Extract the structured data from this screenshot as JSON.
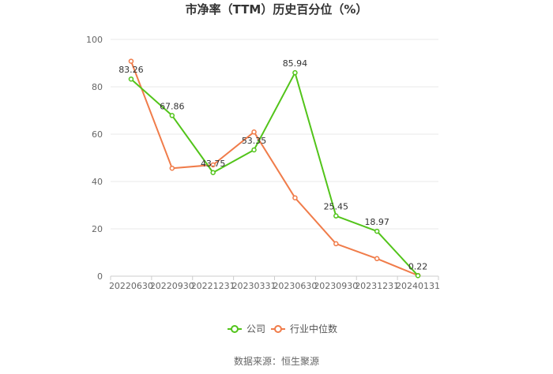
{
  "chart_data": {
    "type": "line",
    "title": "市净率（TTM）历史百分位（%）",
    "categories": [
      "20220630",
      "20220930",
      "20221231",
      "20230331",
      "20230630",
      "20230930",
      "20231231",
      "20240131"
    ],
    "ylim": [
      0,
      100
    ],
    "yticks": [
      0,
      20,
      40,
      60,
      80,
      100
    ],
    "grid": true,
    "legend_position": "bottom",
    "series": [
      {
        "name": "公司",
        "color": "#52c41a",
        "values": [
          83.26,
          67.86,
          43.75,
          53.35,
          85.94,
          25.45,
          18.97,
          0.22
        ],
        "show_labels": true
      },
      {
        "name": "行业中位数",
        "color": "#f07c4a",
        "values": [
          90.8,
          45.6,
          47.0,
          60.9,
          33.1,
          13.7,
          7.4,
          0.3
        ],
        "show_labels": false
      }
    ],
    "source": "数据来源：恒生聚源"
  }
}
